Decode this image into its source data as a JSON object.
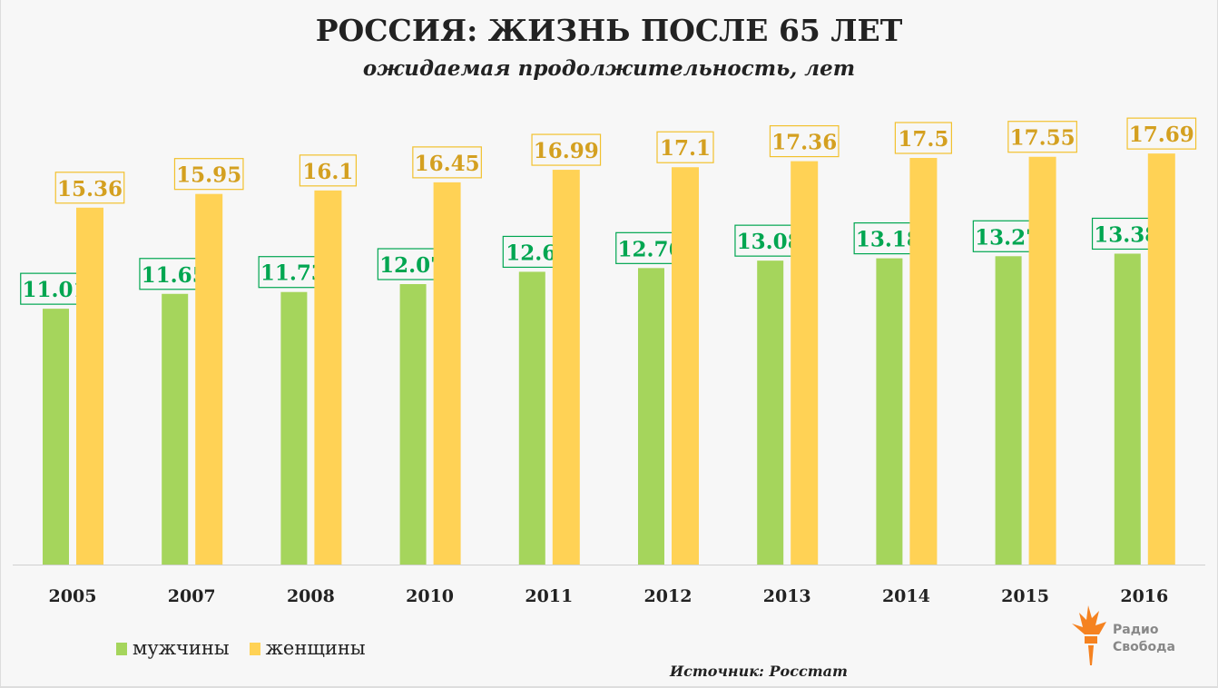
{
  "chart_data": {
    "type": "bar",
    "title": "РОССИЯ: ЖИЗНЬ ПОСЛЕ 65 ЛЕТ",
    "subtitle": "ожидаемая продолжительность, лет",
    "categories": [
      "2005",
      "2007",
      "2008",
      "2010",
      "2011",
      "2012",
      "2013",
      "2014",
      "2015",
      "2016"
    ],
    "series": [
      {
        "name": "мужчины",
        "color": "#a5d55c",
        "label_color": "#00a651",
        "values": [
          11.01,
          11.65,
          11.73,
          12.07,
          12.6,
          12.76,
          13.08,
          13.18,
          13.27,
          13.38
        ]
      },
      {
        "name": "женщины",
        "color": "#ffd255",
        "label_color": "#d4a020",
        "values": [
          15.36,
          15.95,
          16.1,
          16.45,
          16.99,
          17.1,
          17.36,
          17.5,
          17.55,
          17.69
        ]
      }
    ],
    "ylim": [
      0,
      24.3
    ],
    "grid": false,
    "legend_position": "bottom-left",
    "source": "Источник: Росстат"
  },
  "logo_text": [
    "Радио",
    "Свобода"
  ]
}
